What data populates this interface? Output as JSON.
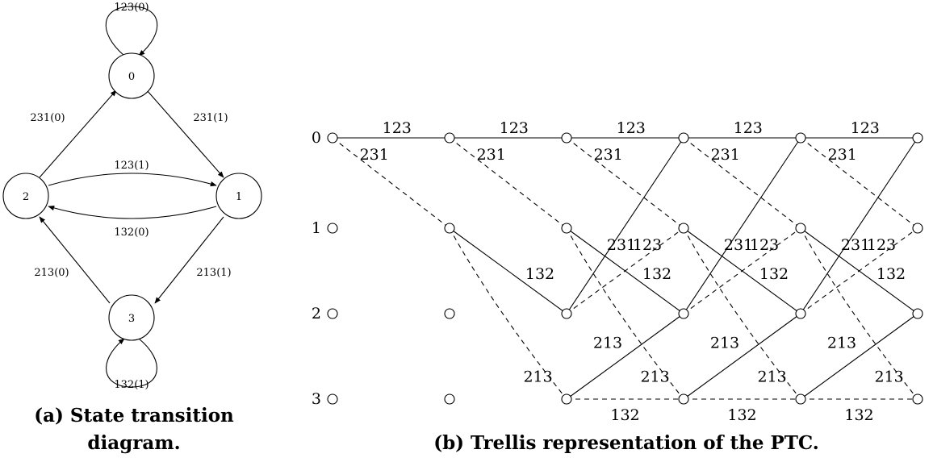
{
  "state_diagram": {
    "states": [
      {
        "id": "0",
        "label": "0"
      },
      {
        "id": "1",
        "label": "1"
      },
      {
        "id": "2",
        "label": "2"
      },
      {
        "id": "3",
        "label": "3"
      }
    ],
    "transitions": [
      {
        "from": "0",
        "to": "0",
        "label": "123(0)"
      },
      {
        "from": "0",
        "to": "1",
        "label": "231(1)"
      },
      {
        "from": "2",
        "to": "0",
        "label": "231(0)"
      },
      {
        "from": "2",
        "to": "1",
        "label": "123(1)"
      },
      {
        "from": "1",
        "to": "2",
        "label": "132(0)"
      },
      {
        "from": "1",
        "to": "3",
        "label": "213(1)"
      },
      {
        "from": "3",
        "to": "2",
        "label": "213(0)"
      },
      {
        "from": "3",
        "to": "3",
        "label": "132(1)"
      }
    ],
    "caption_line1": "(a) State transition",
    "caption_line2": "diagram."
  },
  "trellis": {
    "state_labels": [
      "0",
      "1",
      "2",
      "3"
    ],
    "stages": 6,
    "edge_labels": {
      "s0_s0": "123",
      "s0_s1": "231",
      "s1_s2": "132",
      "s1_s3": "213",
      "s2_s0": "231",
      "s2_s1": "123",
      "s3_s2": "213",
      "s3_s3": "132"
    },
    "line_styles": {
      "solid": "solid",
      "dashed": "dashed"
    },
    "caption": "(b) Trellis representation of the PTC."
  }
}
